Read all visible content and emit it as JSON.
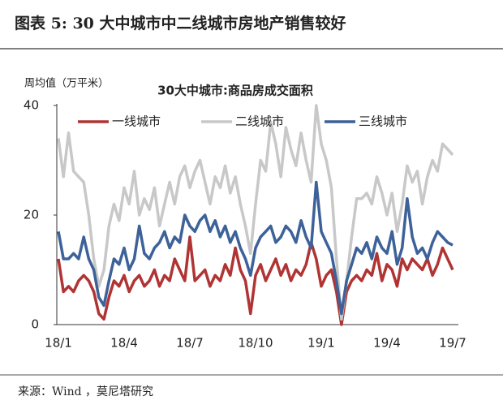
{
  "header": {
    "title": "图表 5:   30 大中城市中二线城市房地产销售较好"
  },
  "chart_data": {
    "type": "line",
    "title": "30大中城市:商品房成交面积",
    "ylabel": "周均值（万平米）",
    "categories": [
      "18/1",
      null,
      null,
      null,
      null,
      null,
      null,
      null,
      null,
      null,
      null,
      null,
      null,
      "18/4",
      null,
      null,
      null,
      null,
      null,
      null,
      null,
      null,
      null,
      null,
      null,
      null,
      "18/7",
      null,
      null,
      null,
      null,
      null,
      null,
      null,
      null,
      null,
      null,
      null,
      null,
      "18/10",
      null,
      null,
      null,
      null,
      null,
      null,
      null,
      null,
      null,
      null,
      null,
      null,
      "19/1",
      null,
      null,
      null,
      null,
      null,
      null,
      null,
      null,
      null,
      null,
      null,
      null,
      "19/4",
      null,
      null,
      null,
      null,
      null,
      null,
      null,
      null,
      null,
      null,
      null,
      null,
      "19/7"
    ],
    "series": [
      {
        "name": "一线城市",
        "color": "#b03434",
        "values": [
          12,
          6,
          7,
          6,
          8,
          9,
          8,
          6,
          2,
          1,
          5,
          8,
          7,
          9,
          6,
          8,
          9,
          7,
          8,
          10,
          7,
          9,
          8,
          12,
          10,
          8,
          16,
          8,
          9,
          10,
          7,
          9,
          8,
          11,
          9,
          14,
          10,
          8,
          2,
          9,
          11,
          8,
          10,
          12,
          9,
          11,
          8,
          10,
          9,
          11,
          15,
          12,
          7,
          9,
          10,
          6,
          0,
          6,
          8,
          9,
          8,
          10,
          9,
          13,
          8,
          11,
          10,
          7,
          12,
          10,
          12,
          11,
          10,
          12,
          9,
          11,
          14,
          12,
          10
        ]
      },
      {
        "name": "二线城市",
        "color": "#c8c8c8",
        "values": [
          34,
          27,
          35,
          28,
          27,
          26,
          20,
          12,
          7,
          10,
          18,
          22,
          19,
          25,
          22,
          28,
          20,
          23,
          21,
          25,
          18,
          22,
          26,
          22,
          27,
          29,
          25,
          28,
          30,
          26,
          22,
          27,
          25,
          29,
          24,
          27,
          22,
          18,
          13,
          22,
          30,
          28,
          37,
          33,
          27,
          36,
          32,
          29,
          35,
          30,
          26,
          40,
          33,
          30,
          25,
          12,
          1,
          8,
          16,
          23,
          23,
          24,
          22,
          27,
          24,
          20,
          24,
          17,
          22,
          29,
          26,
          28,
          22,
          27,
          30,
          28,
          33,
          32,
          31
        ]
      },
      {
        "name": "三线城市",
        "color": "#3d6199",
        "values": [
          17,
          12,
          12,
          13,
          12,
          16,
          12,
          10,
          5,
          3.5,
          8,
          12,
          11,
          14,
          10,
          12,
          18,
          13,
          12,
          14,
          15,
          17,
          14,
          16,
          15,
          20,
          18,
          17,
          19,
          20,
          17,
          19,
          16,
          18,
          15,
          17,
          14,
          12,
          9,
          14,
          16,
          17,
          18,
          15,
          16,
          18,
          17,
          15,
          19,
          16,
          14,
          26,
          17,
          15,
          13,
          8,
          2,
          8,
          11,
          14,
          13,
          15,
          12,
          16,
          14,
          13,
          17,
          11,
          14,
          23,
          16,
          13,
          14,
          12,
          15,
          17,
          16,
          15,
          14.5
        ]
      }
    ],
    "ylim": [
      0,
      40
    ],
    "yticks": [
      0,
      20,
      40
    ],
    "grid": false
  },
  "source": "来源：Wind ，莫尼塔研究"
}
